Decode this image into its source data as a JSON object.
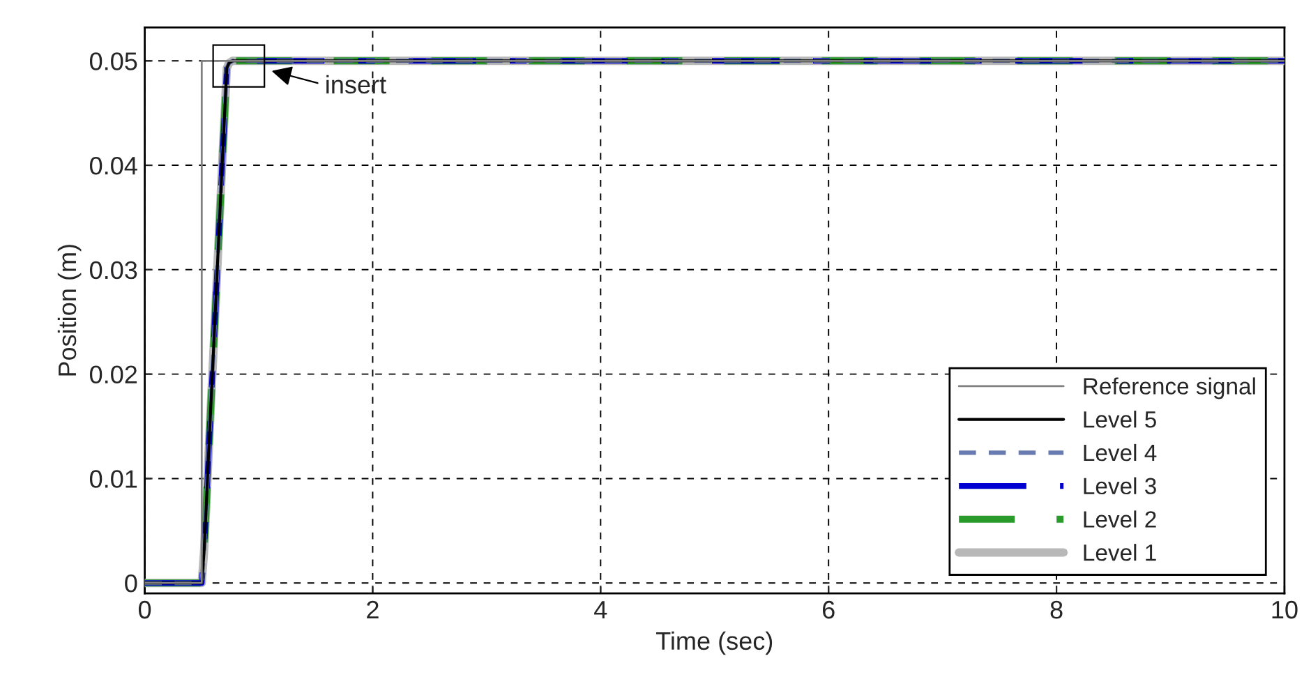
{
  "chart_data": {
    "type": "line",
    "xlabel": "Time (sec)",
    "ylabel": "Position (m)",
    "xlim": [
      0,
      10
    ],
    "ylim": [
      -0.001,
      0.0532
    ],
    "xticks": [
      0,
      2,
      4,
      6,
      8,
      10
    ],
    "yticks": [
      0,
      0.01,
      0.02,
      0.03,
      0.04,
      0.05
    ],
    "grid": true,
    "legend": "bottom right",
    "annotations": [
      "insert"
    ],
    "series": [
      {
        "name": "Reference signal",
        "color": "#808080",
        "line_style": "solid",
        "x": [
          0,
          0.5,
          0.5,
          10
        ],
        "values": [
          0,
          0,
          0.05,
          0.05
        ]
      },
      {
        "name": "Level 5",
        "color": "#000000",
        "line_style": "solid",
        "x": [
          0,
          0.5,
          0.52,
          0.54,
          0.56,
          0.58,
          0.6,
          0.62,
          0.64,
          0.66,
          0.68,
          0.7,
          0.72,
          0.74,
          0.77,
          10
        ],
        "values": [
          0,
          0,
          0.0029,
          0.0074,
          0.0123,
          0.017,
          0.0215,
          0.0262,
          0.0309,
          0.0356,
          0.0403,
          0.0447,
          0.0493,
          0.0498,
          0.05,
          0.05
        ]
      },
      {
        "name": "Level 4",
        "color": "#6a7bb0",
        "line_style": "dashed",
        "x": [
          0,
          0.5,
          0.52,
          0.54,
          0.56,
          0.58,
          0.6,
          0.62,
          0.64,
          0.66,
          0.68,
          0.7,
          0.72,
          0.74,
          0.77,
          10
        ],
        "values": [
          0,
          0,
          0.0029,
          0.0074,
          0.0123,
          0.017,
          0.0215,
          0.0262,
          0.0309,
          0.0356,
          0.0403,
          0.0447,
          0.0493,
          0.0498,
          0.05,
          0.05
        ]
      },
      {
        "name": "Level 3",
        "color": "#0000d0",
        "line_style": "dashed",
        "x": [
          0,
          0.5,
          0.52,
          0.54,
          0.56,
          0.58,
          0.6,
          0.62,
          0.64,
          0.66,
          0.68,
          0.7,
          0.72,
          0.74,
          0.77,
          10
        ],
        "values": [
          0,
          0,
          0.0029,
          0.0074,
          0.0123,
          0.017,
          0.0215,
          0.0262,
          0.0309,
          0.0356,
          0.0403,
          0.0447,
          0.0493,
          0.0498,
          0.05,
          0.05
        ]
      },
      {
        "name": "Level 2",
        "color": "#2a9a2a",
        "line_style": "dashed",
        "x": [
          0,
          0.5,
          0.52,
          0.54,
          0.56,
          0.58,
          0.6,
          0.62,
          0.64,
          0.66,
          0.68,
          0.7,
          0.72,
          0.74,
          0.77,
          10
        ],
        "values": [
          0,
          0,
          0.0029,
          0.0074,
          0.0123,
          0.017,
          0.0215,
          0.0262,
          0.0309,
          0.0356,
          0.0403,
          0.0447,
          0.0493,
          0.0498,
          0.05,
          0.05
        ]
      },
      {
        "name": "Level 1",
        "color": "#b8b8b8",
        "line_style": "solid",
        "x": [
          0,
          0.5,
          0.52,
          0.54,
          0.56,
          0.58,
          0.6,
          0.62,
          0.64,
          0.66,
          0.68,
          0.7,
          0.72,
          0.74,
          0.77,
          10
        ],
        "values": [
          0,
          0,
          0.0029,
          0.0074,
          0.0123,
          0.017,
          0.0215,
          0.0262,
          0.0309,
          0.0356,
          0.0403,
          0.0447,
          0.0493,
          0.0498,
          0.05,
          0.05
        ]
      }
    ]
  }
}
